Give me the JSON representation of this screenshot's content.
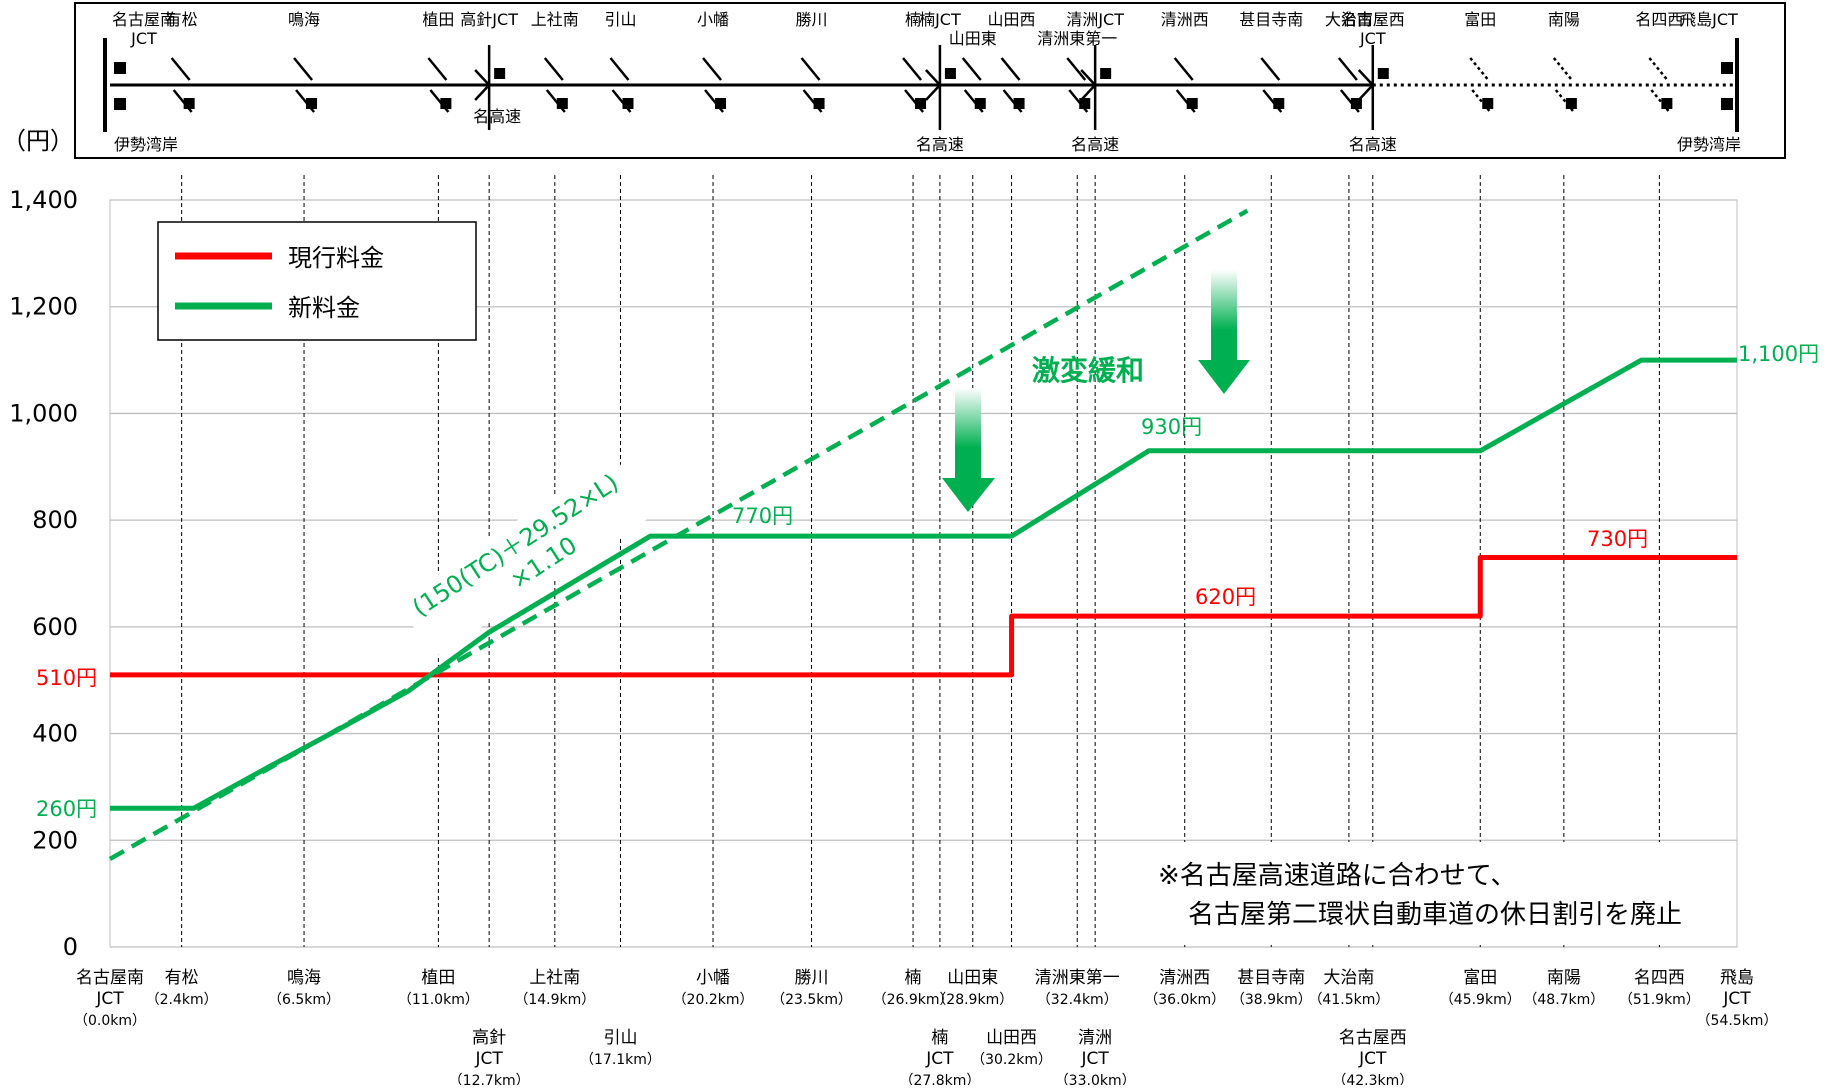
{
  "chart_data": {
    "type": "line",
    "unit_label": "（円）",
    "y_ticks": [
      "0",
      "200",
      "400",
      "600",
      "800",
      "1,000",
      "1,200",
      "1,400"
    ],
    "ylim": [
      0,
      1400
    ],
    "xlim": [
      0.0,
      54.5
    ],
    "grid": true,
    "legend_position": "top-left",
    "legend": [
      {
        "label": "現行料金",
        "color": "#ff0000"
      },
      {
        "label": "新料金",
        "color": "#00b050"
      }
    ],
    "stations": [
      {
        "km": 0.0,
        "name": "名古屋南 JCT",
        "km_label": "（0.0km）",
        "row": 1
      },
      {
        "km": 2.4,
        "name": "有松",
        "km_label": "（2.4km）",
        "row": 1
      },
      {
        "km": 6.5,
        "name": "鳴海",
        "km_label": "（6.5km）",
        "row": 1
      },
      {
        "km": 11.0,
        "name": "植田",
        "km_label": "（11.0km）",
        "row": 1
      },
      {
        "km": 12.7,
        "name": "高針 JCT",
        "km_label": "（12.7km）",
        "row": 2
      },
      {
        "km": 14.9,
        "name": "上社南",
        "km_label": "（14.9km）",
        "row": 1
      },
      {
        "km": 17.1,
        "name": "引山",
        "km_label": "（17.1km）",
        "row": 2
      },
      {
        "km": 20.2,
        "name": "小幡",
        "km_label": "（20.2km）",
        "row": 1
      },
      {
        "km": 23.5,
        "name": "勝川",
        "km_label": "（23.5km）",
        "row": 1
      },
      {
        "km": 26.9,
        "name": "楠",
        "km_label": "（26.9km）",
        "row": 1
      },
      {
        "km": 27.8,
        "name": "楠 JCT",
        "km_label": "（27.8km）",
        "row": 2
      },
      {
        "km": 28.9,
        "name": "山田東",
        "km_label": "（28.9km）",
        "row": 1
      },
      {
        "km": 30.2,
        "name": "山田西",
        "km_label": "（30.2km）",
        "row": 2
      },
      {
        "km": 32.4,
        "name": "清洲東第一",
        "km_label": "（32.4km）",
        "row": 1
      },
      {
        "km": 33.0,
        "name": "清洲 JCT",
        "km_label": "（33.0km）",
        "row": 2
      },
      {
        "km": 36.0,
        "name": "清洲西",
        "km_label": "（36.0km）",
        "row": 1
      },
      {
        "km": 38.9,
        "name": "甚目寺南",
        "km_label": "（38.9km）",
        "row": 1
      },
      {
        "km": 41.5,
        "name": "大治南",
        "km_label": "（41.5km）",
        "row": 1
      },
      {
        "km": 42.3,
        "name": "名古屋西 JCT",
        "km_label": "（42.3km）",
        "row": 2
      },
      {
        "km": 45.9,
        "name": "富田",
        "km_label": "（45.9km）",
        "row": 1
      },
      {
        "km": 48.7,
        "name": "南陽",
        "km_label": "（48.7km）",
        "row": 1
      },
      {
        "km": 51.9,
        "name": "名四西",
        "km_label": "（51.9km）",
        "row": 1
      },
      {
        "km": 54.5,
        "name": "飛島 JCT",
        "km_label": "（54.5km）",
        "row": 1
      }
    ],
    "series": [
      {
        "name": "現行料金",
        "color": "#ff0000",
        "x": [
          0.0,
          30.2,
          30.2,
          45.9,
          45.9,
          54.5
        ],
        "y": [
          510,
          510,
          620,
          620,
          730,
          730
        ]
      },
      {
        "name": "新料金",
        "color": "#00b050",
        "x": [
          0.0,
          2.8,
          5.4,
          7.4,
          10.0,
          12.7,
          18.1,
          30.2,
          34.8,
          45.9,
          51.3,
          54.5
        ],
        "y": [
          260,
          260,
          340,
          400,
          480,
          590,
          770,
          770,
          930,
          930,
          1100,
          1100
        ]
      },
      {
        "name": "(150(TC)+29.52×L)×1.10",
        "color": "#00b050",
        "dashed": true,
        "x": [
          0.0,
          38.1
        ],
        "y": [
          165,
          1380
        ]
      }
    ],
    "annotations": {
      "current_510": "510円",
      "current_620": "620円",
      "current_730": "730円",
      "new_260": "260円",
      "new_770": "770円",
      "new_930": "930円",
      "new_1100": "1,100円",
      "formula_line1": "(150(TC)＋29.52×L)",
      "formula_line2": "×1.10",
      "mitigation": "激変緩和",
      "note_line1": "※名古屋高速道路に合わせて、",
      "note_line2": "名古屋第二環状自動車道の休日割引を廃止"
    }
  },
  "route_map": {
    "top_labels": [
      {
        "text": "名古屋南",
        "km": 0.0
      },
      {
        "text": "JCT",
        "km": 0.0,
        "sub": true
      },
      {
        "text": "有松",
        "km": 2.4
      },
      {
        "text": "鳴海",
        "km": 6.5
      },
      {
        "text": "植田",
        "km": 11.0
      },
      {
        "text": "高針JCT",
        "km": 12.7
      },
      {
        "text": "上社南",
        "km": 14.9
      },
      {
        "text": "引山",
        "km": 17.1
      },
      {
        "text": "小幡",
        "km": 20.2
      },
      {
        "text": "勝川",
        "km": 23.5
      },
      {
        "text": "楠",
        "km": 26.9
      },
      {
        "text": "楠JCT",
        "km": 27.8
      },
      {
        "text": "山田西",
        "km": 30.2
      },
      {
        "text": "山田東",
        "km": 28.9,
        "sub": true
      },
      {
        "text": "清洲東第一",
        "km": 32.4,
        "sub": true
      },
      {
        "text": "清洲JCT",
        "km": 33.0
      },
      {
        "text": "清洲西",
        "km": 36.0
      },
      {
        "text": "甚目寺南",
        "km": 38.9
      },
      {
        "text": "大治南",
        "km": 41.5
      },
      {
        "text": "名古屋西",
        "km": 42.3
      },
      {
        "text": "JCT",
        "km": 42.3,
        "sub": true
      },
      {
        "text": "富田",
        "km": 45.9
      },
      {
        "text": "南陽",
        "km": 48.7
      },
      {
        "text": "名四西",
        "km": 51.9
      },
      {
        "text": "飛島JCT",
        "km": 54.5
      }
    ],
    "bottom_labels": [
      {
        "text": "伊勢湾岸",
        "km": 0.0
      },
      {
        "text": "名高速",
        "km": 12.7
      },
      {
        "text": "名高速",
        "km": 27.8
      },
      {
        "text": "名高速",
        "km": 33.0
      },
      {
        "text": "名高速",
        "km": 42.3
      },
      {
        "text": "伊勢湾岸",
        "km": 54.5
      }
    ]
  }
}
